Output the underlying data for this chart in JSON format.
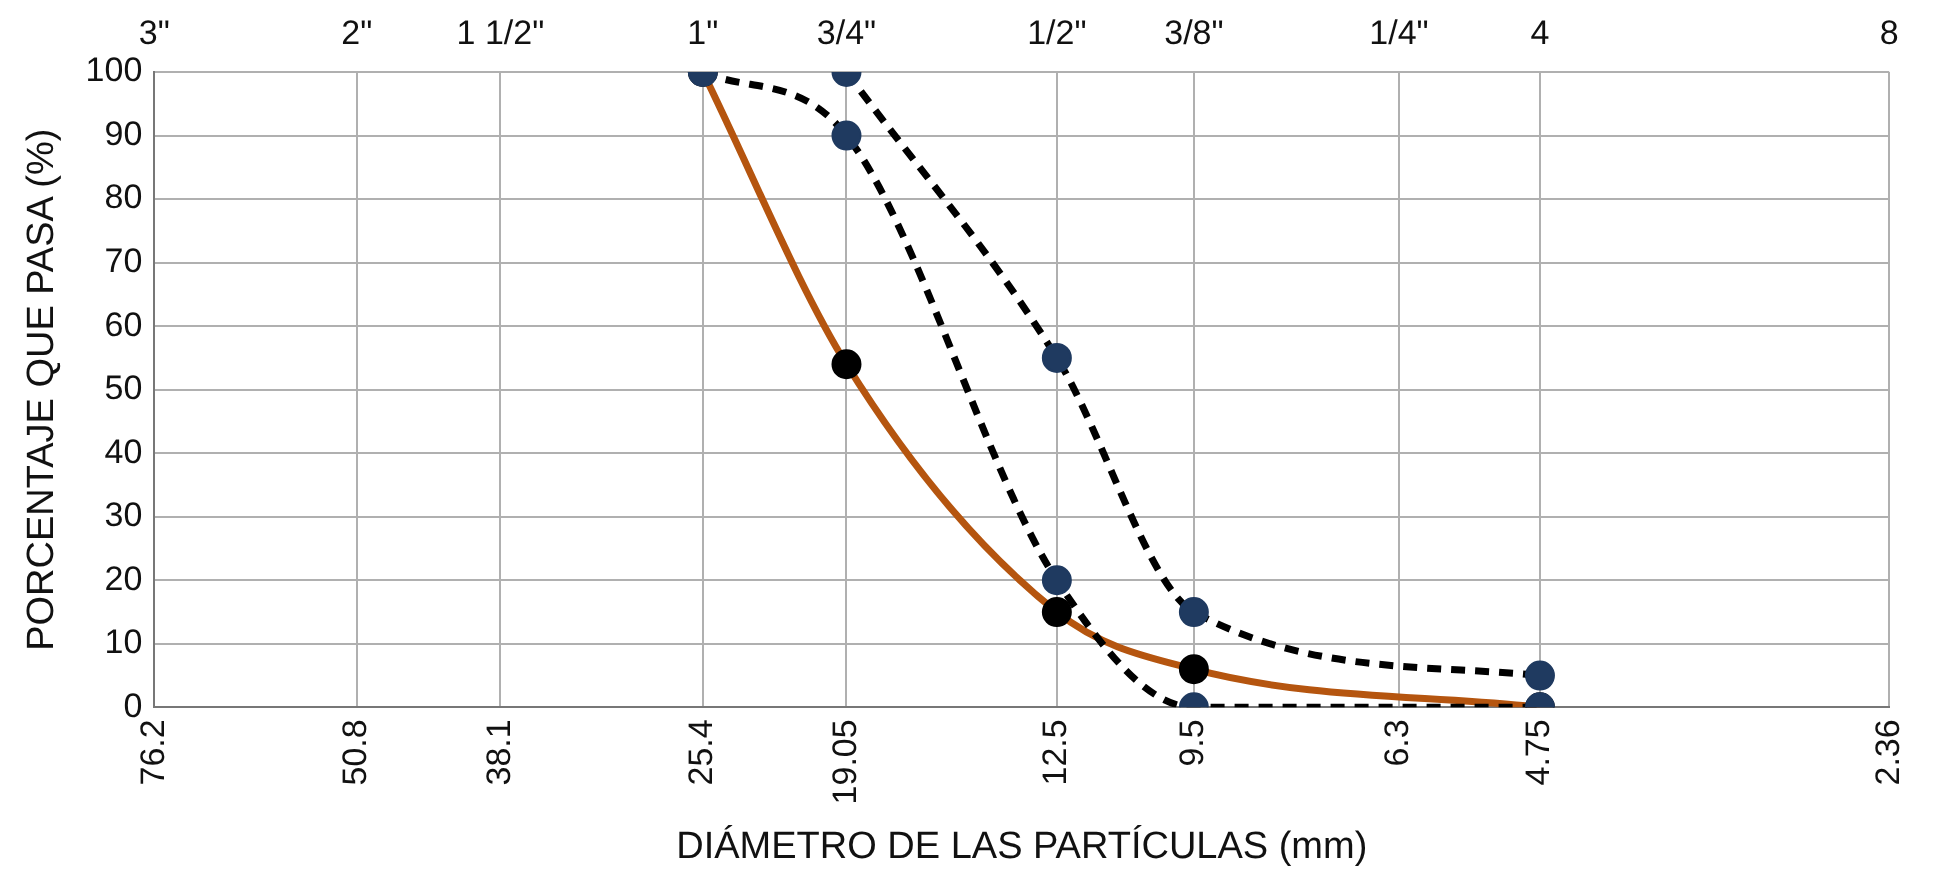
{
  "chart_data": {
    "type": "line",
    "xlabel": "DIÁMETRO DE LAS PARTÍCULAS (mm)",
    "ylabel": "PORCENTAJE QUE PASA (%)",
    "log": "x",
    "xlim": [
      76.2,
      2.36
    ],
    "xticks": [
      76.2,
      50.8,
      38.1,
      25.4,
      19.05,
      12.5,
      9.5,
      6.3,
      4.75,
      2.36
    ],
    "annotations": [
      "3\"",
      "2\"",
      "1 1/2\"",
      "1\"",
      "3/4\"",
      "1/2\"",
      "3/8\"",
      "1/4\"",
      "4",
      "8"
    ],
    "ylim": [
      0,
      100
    ],
    "yticks": [
      0,
      10,
      20,
      30,
      40,
      50,
      60,
      70,
      80,
      90,
      100
    ],
    "grid": true,
    "legend": false,
    "marker": "circle",
    "series": [
      {
        "color": "#000000",
        "line_style": "dashed",
        "x": [
          19.05,
          12.5,
          9.5,
          4.75
        ],
        "values": [
          100,
          55,
          15,
          5
        ],
        "colors": [
          "#1f3a60",
          "#1f3a60",
          "#1f3a60",
          "#1f3a60"
        ]
      },
      {
        "color": "#000000",
        "line_style": "dashed",
        "x": [
          25.4,
          19.05,
          12.5,
          9.5,
          4.75
        ],
        "values": [
          100,
          90,
          20,
          0,
          0
        ],
        "colors": [
          "#1f3a60",
          "#1f3a60",
          "#1f3a60",
          "#1f3a60",
          "#1f3a60"
        ]
      },
      {
        "color": "#b5550f",
        "line_style": "solid",
        "x": [
          25.4,
          19.05,
          12.5,
          9.5,
          4.75
        ],
        "values": [
          100,
          54,
          15,
          6,
          0
        ],
        "colors": [
          "#000000",
          "#000000",
          "#000000",
          "#000000",
          "#000000"
        ]
      }
    ]
  }
}
